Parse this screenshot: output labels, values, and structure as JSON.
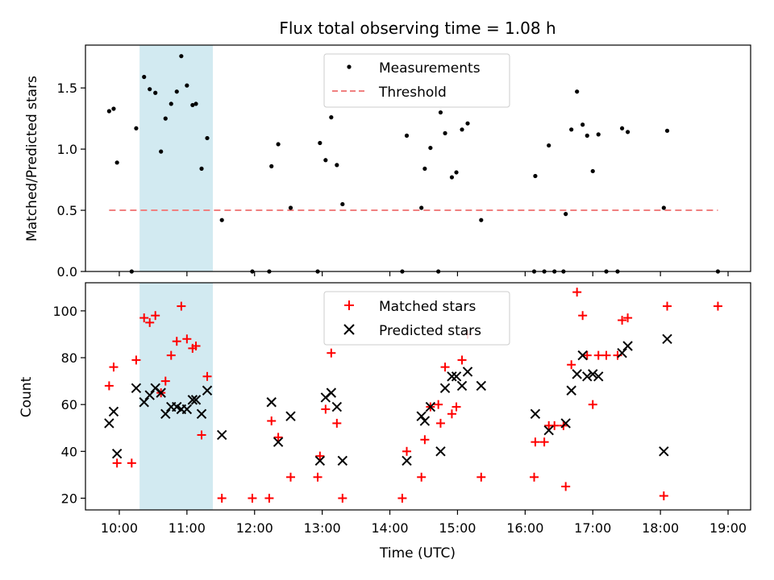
{
  "chart_data": [
    {
      "type": "scatter",
      "title": "Flux total observing time = 1.08 h",
      "xlabel": "",
      "ylabel": "Matched/Predicted stars",
      "x_unit": "time (UTC)",
      "xlim": [
        "09:30",
        "19:20"
      ],
      "ylim": [
        0,
        1.85
      ],
      "x_ticks": [
        "10:00",
        "11:00",
        "12:00",
        "13:00",
        "14:00",
        "15:00",
        "16:00",
        "17:00",
        "18:00",
        "19:00"
      ],
      "y_ticks": [
        0.0,
        0.5,
        1.0,
        1.5
      ],
      "y_tick_labels": [
        "0.0",
        "0.5",
        "1.0",
        "1.5"
      ],
      "shaded_span": [
        "10:18",
        "11:23"
      ],
      "shaded_color": "#add8e6",
      "legend_position": "top-center",
      "series": [
        {
          "name": "Measurements",
          "marker": "dot",
          "color": "#000000",
          "points": [
            [
              "09:51",
              1.31
            ],
            [
              "09:55",
              1.33
            ],
            [
              "09:58",
              0.89
            ],
            [
              "10:11",
              0.0
            ],
            [
              "10:15",
              1.17
            ],
            [
              "10:22",
              1.59
            ],
            [
              "10:27",
              1.49
            ],
            [
              "10:32",
              1.46
            ],
            [
              "10:37",
              0.98
            ],
            [
              "10:41",
              1.25
            ],
            [
              "10:46",
              1.37
            ],
            [
              "10:51",
              1.47
            ],
            [
              "10:55",
              1.76
            ],
            [
              "11:00",
              1.52
            ],
            [
              "11:05",
              1.36
            ],
            [
              "11:08",
              1.37
            ],
            [
              "11:13",
              0.84
            ],
            [
              "11:18",
              1.09
            ],
            [
              "11:31",
              0.42
            ],
            [
              "11:58",
              0.0
            ],
            [
              "12:13",
              0.0
            ],
            [
              "12:15",
              0.86
            ],
            [
              "12:21",
              1.04
            ],
            [
              "12:32",
              0.52
            ],
            [
              "12:56",
              0.0
            ],
            [
              "12:58",
              1.05
            ],
            [
              "13:03",
              0.91
            ],
            [
              "13:08",
              1.26
            ],
            [
              "13:13",
              0.87
            ],
            [
              "13:18",
              0.55
            ],
            [
              "14:11",
              0.0
            ],
            [
              "14:15",
              1.11
            ],
            [
              "14:28",
              0.52
            ],
            [
              "14:31",
              0.84
            ],
            [
              "14:36",
              1.01
            ],
            [
              "14:43",
              0.0
            ],
            [
              "14:45",
              1.3
            ],
            [
              "14:49",
              1.13
            ],
            [
              "14:55",
              0.77
            ],
            [
              "14:59",
              0.81
            ],
            [
              "15:04",
              1.16
            ],
            [
              "15:09",
              1.21
            ],
            [
              "15:21",
              0.42
            ],
            [
              "16:08",
              0.0
            ],
            [
              "16:09",
              0.78
            ],
            [
              "16:17",
              0.0
            ],
            [
              "16:21",
              1.03
            ],
            [
              "16:26",
              0.0
            ],
            [
              "16:34",
              0.0
            ],
            [
              "16:36",
              0.47
            ],
            [
              "16:41",
              1.16
            ],
            [
              "16:46",
              1.47
            ],
            [
              "16:51",
              1.2
            ],
            [
              "16:55",
              1.11
            ],
            [
              "17:00",
              0.82
            ],
            [
              "17:05",
              1.12
            ],
            [
              "17:12",
              0.0
            ],
            [
              "17:22",
              0.0
            ],
            [
              "17:26",
              1.17
            ],
            [
              "17:31",
              1.14
            ],
            [
              "18:03",
              0.52
            ],
            [
              "18:06",
              1.15
            ],
            [
              "18:51",
              0.0
            ]
          ]
        },
        {
          "name": "Threshold",
          "marker": "dashed-line",
          "color": "#f08080",
          "points": [
            [
              "09:51",
              0.5
            ],
            [
              "18:51",
              0.5
            ]
          ]
        }
      ]
    },
    {
      "type": "scatter",
      "title": "",
      "xlabel": "Time (UTC)",
      "ylabel": "Count",
      "xlim": [
        "09:30",
        "19:20"
      ],
      "ylim": [
        15,
        112
      ],
      "x_ticks": [
        "10:00",
        "11:00",
        "12:00",
        "13:00",
        "14:00",
        "15:00",
        "16:00",
        "17:00",
        "18:00",
        "19:00"
      ],
      "y_ticks": [
        20,
        40,
        60,
        80,
        100
      ],
      "shaded_span": [
        "10:18",
        "11:23"
      ],
      "shaded_color": "#add8e6",
      "legend_position": "top-center",
      "series": [
        {
          "name": "Matched stars",
          "marker": "plus",
          "color": "#ff0000",
          "points": [
            [
              "09:51",
              68
            ],
            [
              "09:55",
              76
            ],
            [
              "09:58",
              35
            ],
            [
              "10:11",
              35
            ],
            [
              "10:15",
              79
            ],
            [
              "10:22",
              97
            ],
            [
              "10:27",
              95
            ],
            [
              "10:32",
              98
            ],
            [
              "10:37",
              65
            ],
            [
              "10:41",
              70
            ],
            [
              "10:46",
              81
            ],
            [
              "10:51",
              87
            ],
            [
              "10:55",
              102
            ],
            [
              "11:00",
              88
            ],
            [
              "11:05",
              84
            ],
            [
              "11:08",
              85
            ],
            [
              "11:13",
              47
            ],
            [
              "11:18",
              72
            ],
            [
              "11:31",
              20
            ],
            [
              "11:58",
              20
            ],
            [
              "12:13",
              20
            ],
            [
              "12:15",
              53
            ],
            [
              "12:21",
              46
            ],
            [
              "12:32",
              29
            ],
            [
              "12:56",
              29
            ],
            [
              "12:58",
              38
            ],
            [
              "13:03",
              58
            ],
            [
              "13:08",
              82
            ],
            [
              "13:13",
              52
            ],
            [
              "13:18",
              20
            ],
            [
              "14:11",
              20
            ],
            [
              "14:15",
              40
            ],
            [
              "14:28",
              29
            ],
            [
              "14:31",
              45
            ],
            [
              "14:36",
              59
            ],
            [
              "14:43",
              60
            ],
            [
              "14:45",
              52
            ],
            [
              "14:49",
              76
            ],
            [
              "14:55",
              56
            ],
            [
              "14:59",
              59
            ],
            [
              "15:04",
              79
            ],
            [
              "15:09",
              90
            ],
            [
              "15:21",
              29
            ],
            [
              "16:08",
              29
            ],
            [
              "16:09",
              44
            ],
            [
              "16:17",
              44
            ],
            [
              "16:21",
              51
            ],
            [
              "16:26",
              51
            ],
            [
              "16:34",
              51
            ],
            [
              "16:36",
              25
            ],
            [
              "16:41",
              77
            ],
            [
              "16:46",
              108
            ],
            [
              "16:51",
              98
            ],
            [
              "16:55",
              81
            ],
            [
              "17:00",
              60
            ],
            [
              "17:05",
              81
            ],
            [
              "17:12",
              81
            ],
            [
              "17:22",
              81
            ],
            [
              "17:26",
              96
            ],
            [
              "17:31",
              97
            ],
            [
              "18:03",
              21
            ],
            [
              "18:06",
              102
            ],
            [
              "18:51",
              102
            ]
          ]
        },
        {
          "name": "Predicted stars",
          "marker": "x",
          "color": "#000000",
          "points": [
            [
              "09:51",
              52
            ],
            [
              "09:55",
              57
            ],
            [
              "09:58",
              39
            ],
            [
              "10:15",
              67
            ],
            [
              "10:22",
              61
            ],
            [
              "10:27",
              64
            ],
            [
              "10:32",
              67
            ],
            [
              "10:37",
              65
            ],
            [
              "10:41",
              56
            ],
            [
              "10:46",
              59
            ],
            [
              "10:51",
              59
            ],
            [
              "10:55",
              58
            ],
            [
              "11:00",
              58
            ],
            [
              "11:05",
              62
            ],
            [
              "11:08",
              62
            ],
            [
              "11:13",
              56
            ],
            [
              "11:18",
              66
            ],
            [
              "11:31",
              47
            ],
            [
              "12:15",
              61
            ],
            [
              "12:21",
              44
            ],
            [
              "12:32",
              55
            ],
            [
              "12:58",
              36
            ],
            [
              "13:03",
              63
            ],
            [
              "13:08",
              65
            ],
            [
              "13:13",
              59
            ],
            [
              "13:18",
              36
            ],
            [
              "14:15",
              36
            ],
            [
              "14:28",
              55
            ],
            [
              "14:31",
              53
            ],
            [
              "14:36",
              59
            ],
            [
              "14:45",
              40
            ],
            [
              "14:49",
              67
            ],
            [
              "14:55",
              72
            ],
            [
              "14:59",
              72
            ],
            [
              "15:04",
              68
            ],
            [
              "15:09",
              74
            ],
            [
              "15:21",
              68
            ],
            [
              "16:09",
              56
            ],
            [
              "16:21",
              49
            ],
            [
              "16:36",
              52
            ],
            [
              "16:41",
              66
            ],
            [
              "16:46",
              73
            ],
            [
              "16:51",
              81
            ],
            [
              "16:55",
              72
            ],
            [
              "17:00",
              73
            ],
            [
              "17:05",
              72
            ],
            [
              "17:26",
              82
            ],
            [
              "17:31",
              85
            ],
            [
              "18:03",
              40
            ],
            [
              "18:06",
              88
            ]
          ]
        }
      ]
    }
  ]
}
